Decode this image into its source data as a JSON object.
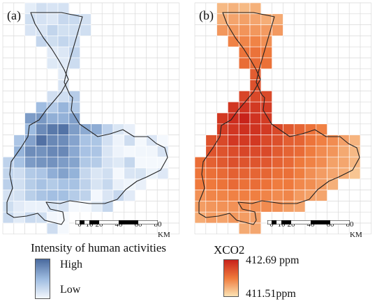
{
  "panel_a": {
    "label": "(a)",
    "legend_title": "Intensity of human activities",
    "legend_high": "High",
    "legend_low": "Low",
    "colors": {
      "high": "#4a6a9e",
      "mid": "#9dbbe0",
      "low": "#f4f8fd"
    }
  },
  "panel_b": {
    "label": "(b)",
    "legend_title": "XCO2",
    "legend_high": "412.69 ppm",
    "legend_low": "411.51ppm",
    "colors": {
      "high": "#c8221a",
      "mid": "#ef7a3c",
      "low": "#fbe3b4"
    }
  },
  "scalebar": {
    "ticks": [
      "0",
      "10",
      "20",
      "40",
      "60",
      "80"
    ],
    "unit": "KM"
  }
}
